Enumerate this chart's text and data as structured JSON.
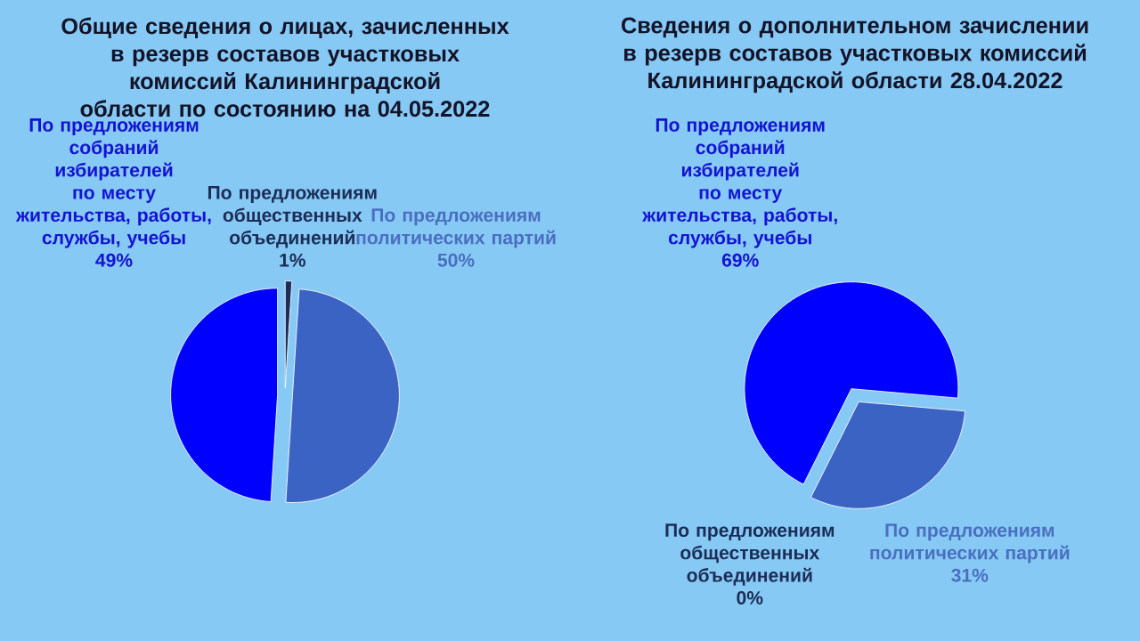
{
  "chart_data": [
    {
      "type": "pie",
      "title": "Общие сведения о лицах, зачисленных в резерв составов участковых комиссий Калининградской области по состоянию на 04.05.2022",
      "categories": [
        "По предложениям собраний избирателей по месту жительства, работы, службы, учебы",
        "По предложениям политических партий",
        "По предложениям общественных объединений"
      ],
      "values": [
        49,
        50,
        1
      ],
      "value_labels": [
        "49%",
        "50%",
        "1%"
      ],
      "colors": [
        "#0000ff",
        "#3b63c4",
        "#1c2e57"
      ],
      "legend": false
    },
    {
      "type": "pie",
      "title": "Сведения о дополнительном зачислении в резерв составов участковых комиссий Калининградской области 28.04.2022",
      "categories": [
        "По предложениям собраний избирателей по месту жительства, работы, службы, учебы",
        "По предложениям общественных объединений",
        "По предложениям политических партий"
      ],
      "values": [
        69,
        0,
        31
      ],
      "value_labels": [
        "69%",
        "0%",
        "31%"
      ],
      "colors": [
        "#0000ff",
        "#1c2e57",
        "#3b63c4"
      ],
      "legend": false
    }
  ]
}
